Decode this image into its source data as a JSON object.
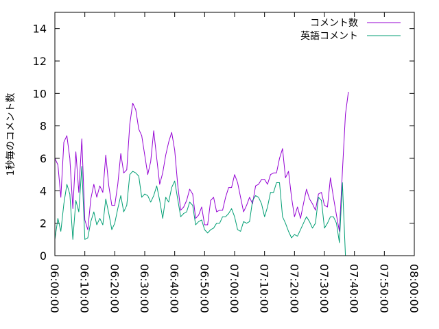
{
  "chart_data": {
    "type": "line",
    "ylabel": "1秒毎のコメント数",
    "xlabel": "",
    "xlim": [
      "06:00:00",
      "08:00:00"
    ],
    "ylim": [
      0,
      15
    ],
    "x_ticks": [
      "06:00:00",
      "06:10:00",
      "06:20:00",
      "06:30:00",
      "06:40:00",
      "06:50:00",
      "07:00:00",
      "07:10:00",
      "07:20:00",
      "07:30:00",
      "07:40:00",
      "07:50:00",
      "08:00:00"
    ],
    "y_ticks": [
      0,
      2,
      4,
      6,
      8,
      10,
      12,
      14
    ],
    "legend_position": "top-right",
    "grid": false,
    "series": [
      {
        "name": "コメント数",
        "color": "#9400d3",
        "points": [
          [
            "06:00:00",
            6.0
          ],
          [
            "06:01:00",
            5.6
          ],
          [
            "06:02:00",
            3.6
          ],
          [
            "06:03:00",
            7.0
          ],
          [
            "06:04:00",
            7.4
          ],
          [
            "06:05:00",
            6.0
          ],
          [
            "06:06:00",
            2.9
          ],
          [
            "06:07:00",
            6.4
          ],
          [
            "06:08:00",
            3.9
          ],
          [
            "06:09:00",
            7.2
          ],
          [
            "06:10:00",
            2.2
          ],
          [
            "06:11:00",
            1.6
          ],
          [
            "06:12:00",
            3.5
          ],
          [
            "06:13:00",
            4.4
          ],
          [
            "06:14:00",
            3.6
          ],
          [
            "06:15:00",
            4.3
          ],
          [
            "06:16:00",
            3.9
          ],
          [
            "06:17:00",
            6.2
          ],
          [
            "06:18:00",
            4.3
          ],
          [
            "06:19:00",
            3.1
          ],
          [
            "06:20:00",
            3.1
          ],
          [
            "06:21:00",
            4.4
          ],
          [
            "06:22:00",
            6.3
          ],
          [
            "06:23:00",
            5.1
          ],
          [
            "06:24:00",
            5.3
          ],
          [
            "06:25:00",
            8.1
          ],
          [
            "06:26:00",
            9.4
          ],
          [
            "06:27:00",
            9.0
          ],
          [
            "06:28:00",
            7.8
          ],
          [
            "06:29:00",
            7.4
          ],
          [
            "06:30:00",
            6.2
          ],
          [
            "06:31:00",
            5.0
          ],
          [
            "06:32:00",
            5.8
          ],
          [
            "06:33:00",
            7.7
          ],
          [
            "06:34:00",
            6.0
          ],
          [
            "06:35:00",
            4.4
          ],
          [
            "06:36:00",
            5.1
          ],
          [
            "06:37:00",
            6.2
          ],
          [
            "06:38:00",
            7.0
          ],
          [
            "06:39:00",
            7.6
          ],
          [
            "06:40:00",
            6.5
          ],
          [
            "06:41:00",
            4.4
          ],
          [
            "06:42:00",
            2.8
          ],
          [
            "06:43:00",
            3.0
          ],
          [
            "06:44:00",
            3.4
          ],
          [
            "06:45:00",
            4.1
          ],
          [
            "06:46:00",
            3.8
          ],
          [
            "06:47:00",
            2.3
          ],
          [
            "06:48:00",
            2.5
          ],
          [
            "06:49:00",
            3.0
          ],
          [
            "06:50:00",
            1.9
          ],
          [
            "06:51:00",
            1.9
          ],
          [
            "06:52:00",
            3.4
          ],
          [
            "06:53:00",
            3.6
          ],
          [
            "06:54:00",
            2.7
          ],
          [
            "06:55:00",
            2.8
          ],
          [
            "06:56:00",
            2.8
          ],
          [
            "06:57:00",
            3.6
          ],
          [
            "06:58:00",
            4.2
          ],
          [
            "06:59:00",
            4.2
          ],
          [
            "07:00:00",
            5.0
          ],
          [
            "07:01:00",
            4.5
          ],
          [
            "07:02:00",
            3.6
          ],
          [
            "07:03:00",
            2.7
          ],
          [
            "07:04:00",
            3.1
          ],
          [
            "07:05:00",
            3.6
          ],
          [
            "07:06:00",
            3.2
          ],
          [
            "07:07:00",
            4.3
          ],
          [
            "07:08:00",
            4.4
          ],
          [
            "07:09:00",
            4.7
          ],
          [
            "07:10:00",
            4.7
          ],
          [
            "07:11:00",
            4.4
          ],
          [
            "07:12:00",
            5.0
          ],
          [
            "07:13:00",
            5.1
          ],
          [
            "07:14:00",
            5.1
          ],
          [
            "07:15:00",
            6.0
          ],
          [
            "07:16:00",
            6.6
          ],
          [
            "07:17:00",
            4.8
          ],
          [
            "07:18:00",
            5.2
          ],
          [
            "07:19:00",
            3.6
          ],
          [
            "07:20:00",
            2.4
          ],
          [
            "07:21:00",
            3.0
          ],
          [
            "07:22:00",
            2.3
          ],
          [
            "07:23:00",
            3.2
          ],
          [
            "07:24:00",
            4.1
          ],
          [
            "07:25:00",
            3.5
          ],
          [
            "07:26:00",
            3.2
          ],
          [
            "07:27:00",
            2.8
          ],
          [
            "07:28:00",
            3.8
          ],
          [
            "07:29:00",
            3.9
          ],
          [
            "07:30:00",
            3.1
          ],
          [
            "07:31:00",
            3.0
          ],
          [
            "07:32:00",
            4.8
          ],
          [
            "07:33:00",
            3.6
          ],
          [
            "07:34:00",
            2.5
          ],
          [
            "07:35:00",
            1.5
          ],
          [
            "07:36:00",
            5.2
          ],
          [
            "07:37:00",
            8.7
          ],
          [
            "07:38:00",
            10.1
          ]
        ]
      },
      {
        "name": "英語コメント",
        "color": "#009e73",
        "points": [
          [
            "06:00:00",
            1.0
          ],
          [
            "06:01:00",
            2.3
          ],
          [
            "06:02:00",
            1.5
          ],
          [
            "06:03:00",
            3.2
          ],
          [
            "06:04:00",
            4.4
          ],
          [
            "06:05:00",
            3.8
          ],
          [
            "06:06:00",
            1.0
          ],
          [
            "06:07:00",
            3.4
          ],
          [
            "06:08:00",
            2.7
          ],
          [
            "06:09:00",
            5.5
          ],
          [
            "06:10:00",
            1.0
          ],
          [
            "06:11:00",
            1.1
          ],
          [
            "06:12:00",
            2.1
          ],
          [
            "06:13:00",
            2.7
          ],
          [
            "06:14:00",
            1.9
          ],
          [
            "06:15:00",
            2.3
          ],
          [
            "06:16:00",
            1.9
          ],
          [
            "06:17:00",
            3.5
          ],
          [
            "06:18:00",
            2.6
          ],
          [
            "06:19:00",
            1.6
          ],
          [
            "06:20:00",
            2.0
          ],
          [
            "06:21:00",
            2.9
          ],
          [
            "06:22:00",
            3.7
          ],
          [
            "06:23:00",
            2.7
          ],
          [
            "06:24:00",
            3.1
          ],
          [
            "06:25:00",
            5.0
          ],
          [
            "06:26:00",
            5.2
          ],
          [
            "06:27:00",
            5.1
          ],
          [
            "06:28:00",
            4.9
          ],
          [
            "06:29:00",
            3.6
          ],
          [
            "06:30:00",
            3.8
          ],
          [
            "06:31:00",
            3.7
          ],
          [
            "06:32:00",
            3.3
          ],
          [
            "06:33:00",
            3.7
          ],
          [
            "06:34:00",
            4.3
          ],
          [
            "06:35:00",
            3.4
          ],
          [
            "06:36:00",
            2.3
          ],
          [
            "06:37:00",
            3.6
          ],
          [
            "06:38:00",
            3.3
          ],
          [
            "06:39:00",
            4.2
          ],
          [
            "06:40:00",
            4.6
          ],
          [
            "06:41:00",
            3.5
          ],
          [
            "06:42:00",
            2.4
          ],
          [
            "06:43:00",
            2.6
          ],
          [
            "06:44:00",
            2.7
          ],
          [
            "06:45:00",
            3.3
          ],
          [
            "06:46:00",
            3.1
          ],
          [
            "06:47:00",
            1.9
          ],
          [
            "06:48:00",
            2.1
          ],
          [
            "06:49:00",
            2.2
          ],
          [
            "06:50:00",
            1.6
          ],
          [
            "06:51:00",
            1.4
          ],
          [
            "06:52:00",
            1.6
          ],
          [
            "06:53:00",
            1.7
          ],
          [
            "06:54:00",
            2.0
          ],
          [
            "06:55:00",
            2.0
          ],
          [
            "06:56:00",
            2.4
          ],
          [
            "06:57:00",
            2.4
          ],
          [
            "06:58:00",
            2.6
          ],
          [
            "06:59:00",
            2.9
          ],
          [
            "07:00:00",
            2.4
          ],
          [
            "07:01:00",
            1.6
          ],
          [
            "07:02:00",
            1.5
          ],
          [
            "07:03:00",
            2.1
          ],
          [
            "07:04:00",
            2.0
          ],
          [
            "07:05:00",
            2.1
          ],
          [
            "07:06:00",
            3.4
          ],
          [
            "07:07:00",
            3.7
          ],
          [
            "07:08:00",
            3.6
          ],
          [
            "07:09:00",
            3.2
          ],
          [
            "07:10:00",
            2.4
          ],
          [
            "07:11:00",
            3.0
          ],
          [
            "07:12:00",
            3.9
          ],
          [
            "07:13:00",
            3.9
          ],
          [
            "07:14:00",
            4.5
          ],
          [
            "07:15:00",
            4.5
          ],
          [
            "07:16:00",
            2.4
          ],
          [
            "07:17:00",
            2.0
          ],
          [
            "07:18:00",
            1.5
          ],
          [
            "07:19:00",
            1.1
          ],
          [
            "07:20:00",
            1.3
          ],
          [
            "07:21:00",
            1.2
          ],
          [
            "07:22:00",
            1.6
          ],
          [
            "07:23:00",
            2.0
          ],
          [
            "07:24:00",
            2.4
          ],
          [
            "07:25:00",
            2.1
          ],
          [
            "07:26:00",
            1.7
          ],
          [
            "07:27:00",
            2.0
          ],
          [
            "07:28:00",
            3.6
          ],
          [
            "07:29:00",
            3.4
          ],
          [
            "07:30:00",
            1.7
          ],
          [
            "07:31:00",
            2.0
          ],
          [
            "07:32:00",
            2.4
          ],
          [
            "07:33:00",
            2.4
          ],
          [
            "07:34:00",
            2.0
          ],
          [
            "07:35:00",
            0.8
          ],
          [
            "07:36:00",
            4.5
          ],
          [
            "07:37:00",
            0.0
          ]
        ]
      }
    ]
  }
}
